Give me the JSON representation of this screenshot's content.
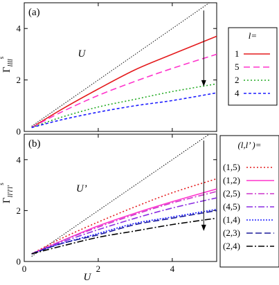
{
  "chart_data": [
    {
      "type": "line",
      "panel_label": "(a)",
      "ylabel": {
        "main": "Γ",
        "sub": "llll",
        "sup": "s"
      },
      "xlim": [
        0,
        5.2
      ],
      "ylim": [
        0,
        5
      ],
      "yticks": [
        0,
        2,
        4
      ],
      "xticks": [
        0,
        2,
        4
      ],
      "reference_line": {
        "label": "U",
        "slope": 1,
        "color": "#000000",
        "dash": "1.5,2"
      },
      "arrow": {
        "x": 4.85,
        "y_from": 4.7,
        "y_to": 1.75
      },
      "legend": {
        "title": "l=",
        "placement": "right"
      },
      "series": [
        {
          "name": "1",
          "color": "#e41a1c",
          "dash": "",
          "x": [
            0.2,
            1,
            2,
            3,
            4,
            5.2
          ],
          "y": [
            0.15,
            0.85,
            1.65,
            2.4,
            3.0,
            3.7
          ]
        },
        {
          "name": "5",
          "color": "#ff33cc",
          "dash": "9,5",
          "x": [
            0.2,
            1,
            2,
            3,
            4,
            5.2
          ],
          "y": [
            0.15,
            0.75,
            1.4,
            1.95,
            2.45,
            3.0
          ]
        },
        {
          "name": "2",
          "color": "#22aa22",
          "dash": "2,3",
          "x": [
            0.2,
            1,
            2,
            3,
            4,
            5.2
          ],
          "y": [
            0.15,
            0.55,
            0.95,
            1.25,
            1.55,
            1.85
          ]
        },
        {
          "name": "4",
          "color": "#1a1aff",
          "dash": "4,3",
          "x": [
            0.2,
            1,
            2,
            3,
            4,
            5.2
          ],
          "y": [
            0.15,
            0.45,
            0.75,
            1.0,
            1.2,
            1.5
          ]
        }
      ]
    },
    {
      "type": "line",
      "panel_label": "(b)",
      "ylabel": {
        "main": "Γ",
        "sub": "ll'l'l'",
        "sup": "s"
      },
      "xlabel": "U",
      "xlim": [
        0,
        5.2
      ],
      "ylim": [
        0,
        5
      ],
      "yticks": [
        0,
        2,
        4
      ],
      "xticks": [
        0,
        2,
        4
      ],
      "reference_line": {
        "label": "U’",
        "slope": 1,
        "color": "#000000",
        "dash": "1.5,2"
      },
      "arrow": {
        "x": 4.85,
        "y_from": 4.75,
        "y_to": 1.2
      },
      "legend": {
        "title": "(l,l’ )=",
        "placement": "right"
      },
      "series": [
        {
          "name": "(1,5)",
          "color": "#e41a1c",
          "dash": "2,3",
          "x": [
            0.2,
            1,
            2,
            3,
            4,
            5.2
          ],
          "y": [
            0.3,
            0.9,
            1.55,
            2.15,
            2.7,
            3.25
          ]
        },
        {
          "name": "(1,2)",
          "color": "#ff33cc",
          "dash": "",
          "x": [
            0.2,
            1,
            2,
            3,
            4,
            5.2
          ],
          "y": [
            0.3,
            0.8,
            1.4,
            1.9,
            2.35,
            2.85
          ]
        },
        {
          "name": "(2,5)",
          "color": "#cc33cc",
          "dash": "9,3,2,3",
          "x": [
            0.2,
            1,
            2,
            3,
            4,
            5.2
          ],
          "y": [
            0.3,
            0.8,
            1.35,
            1.85,
            2.3,
            2.75
          ]
        },
        {
          "name": "(4,5)",
          "color": "#8a2be2",
          "dash": "9,3,2,3",
          "x": [
            0.2,
            1,
            2,
            3,
            4,
            5.2
          ],
          "y": [
            0.3,
            0.75,
            1.25,
            1.7,
            2.1,
            2.5
          ]
        },
        {
          "name": "(1,4)",
          "color": "#1a1aff",
          "dash": "2,2",
          "x": [
            0.2,
            1,
            2,
            3,
            4,
            5.2
          ],
          "y": [
            0.3,
            0.7,
            1.1,
            1.5,
            1.75,
            2.05
          ]
        },
        {
          "name": "(2,3)",
          "color": "#1a1a99",
          "dash": "9,4",
          "x": [
            0.2,
            1,
            2,
            3,
            4,
            5.2
          ],
          "y": [
            0.3,
            0.7,
            1.05,
            1.45,
            1.7,
            2.0
          ]
        },
        {
          "name": "(2,4)",
          "color": "#000000",
          "dash": "9,3,2,3",
          "x": [
            0.2,
            1,
            2,
            3,
            4,
            5.2
          ],
          "y": [
            0.3,
            0.6,
            0.95,
            1.2,
            1.45,
            1.7
          ]
        }
      ]
    }
  ]
}
